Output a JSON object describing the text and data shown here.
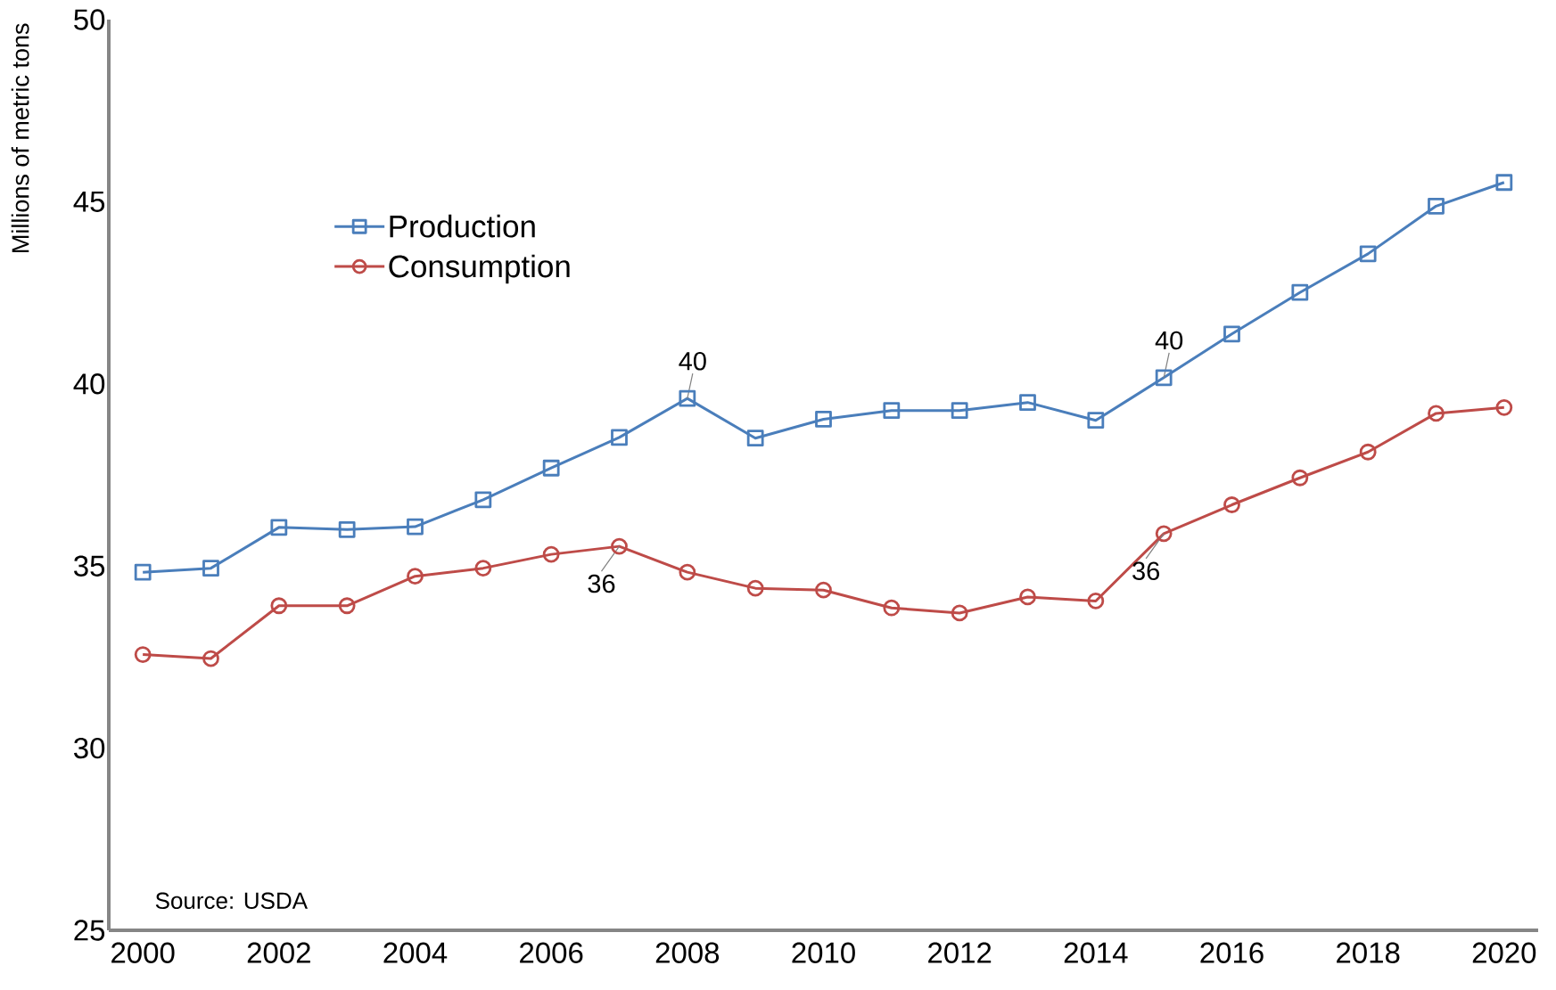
{
  "chart_data": {
    "type": "line",
    "ylabel": "Millions of metric tons",
    "x": [
      2000,
      2001,
      2002,
      2003,
      2004,
      2005,
      2006,
      2007,
      2008,
      2009,
      2010,
      2011,
      2012,
      2013,
      2014,
      2015,
      2016,
      2017,
      2018,
      2019,
      2020
    ],
    "series": [
      {
        "name": "Production",
        "color": "#4a7ebb",
        "marker": "square",
        "values": [
          34.83,
          34.94,
          36.06,
          36.0,
          36.08,
          36.82,
          37.69,
          38.53,
          39.6,
          38.51,
          39.03,
          39.27,
          39.27,
          39.49,
          39.0,
          40.17,
          41.37,
          42.51,
          43.57,
          44.88,
          45.53
        ]
      },
      {
        "name": "Consumption",
        "color": "#be4b48",
        "marker": "circle",
        "values": [
          32.57,
          32.46,
          33.91,
          33.91,
          34.72,
          34.94,
          35.32,
          35.54,
          34.83,
          34.39,
          34.34,
          33.85,
          33.71,
          34.15,
          34.04,
          35.89,
          36.68,
          37.42,
          38.13,
          39.19,
          39.35
        ]
      }
    ],
    "xlim": [
      1999.5,
      2020.5
    ],
    "ylim": [
      25,
      50
    ],
    "xticks": [
      2000,
      2002,
      2004,
      2006,
      2008,
      2010,
      2012,
      2014,
      2016,
      2018,
      2020
    ],
    "yticks": [
      25,
      30,
      35,
      40,
      45,
      50
    ],
    "legend": "top left",
    "grid": false,
    "line_style": "solid",
    "annotations": [
      {
        "text": "40",
        "x": 2008,
        "y": 39.6
      },
      {
        "text": "40",
        "x": 2015,
        "y": 40.17
      },
      {
        "text": "36",
        "x": 2007,
        "y": 35.54
      },
      {
        "text": "36",
        "x": 2015,
        "y": 35.89
      },
      "Source: USDA"
    ]
  }
}
